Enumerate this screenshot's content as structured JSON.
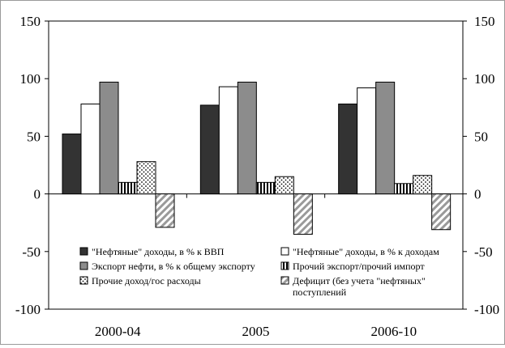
{
  "chart_data": {
    "type": "bar",
    "categories": [
      "2000-04",
      "2005",
      "2006-10"
    ],
    "ylim": [
      -100,
      150
    ],
    "yticks": [
      -100,
      -50,
      0,
      50,
      100,
      150
    ],
    "secondary_axis": true,
    "grid": false,
    "legend_position": "inside-lower",
    "series": [
      {
        "name": "\"Нефтяные\" доходы, в % к ВВП",
        "values": [
          52,
          77,
          78
        ],
        "color": "#333333",
        "pattern": "solid-dark"
      },
      {
        "name": "\"Нефтяные\" доходы, в % к доходам",
        "values": [
          78,
          93,
          92
        ],
        "color": "#ffffff",
        "pattern": "solid-white"
      },
      {
        "name": "Экспорт нефти, в % к общему экспорту",
        "values": [
          97,
          97,
          97
        ],
        "color": "#8c8c8c",
        "pattern": "solid-gray"
      },
      {
        "name": "Прочий экспорт/прочий импорт",
        "values": [
          10,
          10,
          9
        ],
        "color": "#000000",
        "pattern": "vertical-stripes"
      },
      {
        "name": "Прочие доход/гос расходы",
        "values": [
          28,
          15,
          16
        ],
        "color": "#ffffff",
        "pattern": "dots"
      },
      {
        "name": "Дефицит (без учета \"нефтяных\" поступлений",
        "values": [
          -29,
          -35,
          -31
        ],
        "color": "#9a9a9a",
        "pattern": "diagonal-stripes"
      }
    ]
  }
}
